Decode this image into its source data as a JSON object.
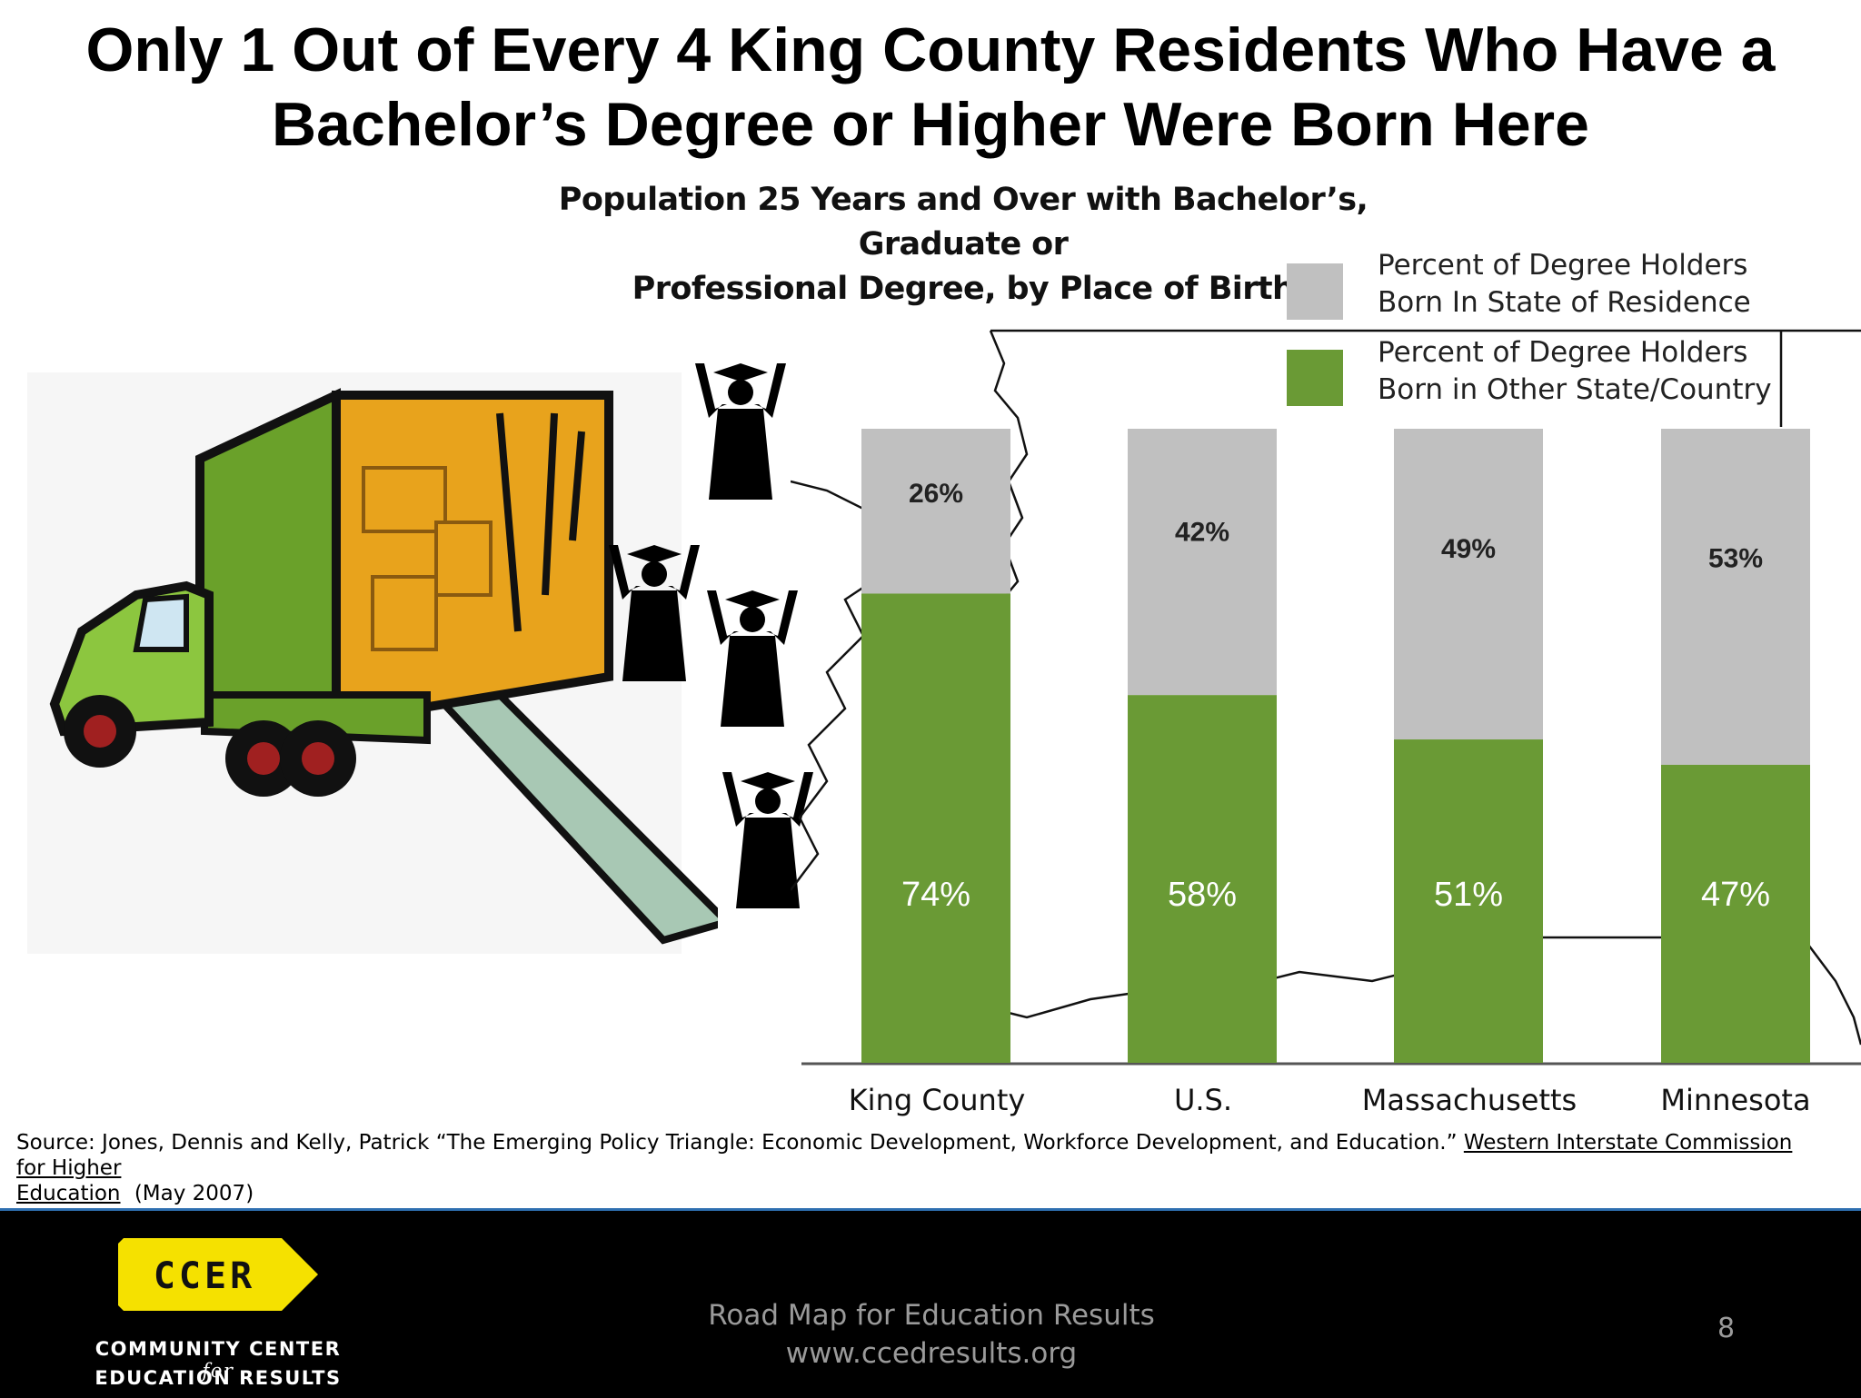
{
  "title_line1": "Only 1 Out of Every 4 King County Residents Who Have a",
  "title_line2": "Bachelor’s Degree or Higher Were Born Here",
  "subtitle_line1": "Population 25 Years and Over with Bachelor’s, Graduate or",
  "subtitle_line2": "Professional Degree, by Place of Birth",
  "legend": [
    {
      "line1": "Percent of Degree Holders",
      "line2": "Born In State of Residence",
      "color": "#c0c0c0"
    },
    {
      "line1": "Percent of Degree Holders",
      "line2": "Born in Other State/Country",
      "color": "#6a9a35"
    }
  ],
  "chart_data": {
    "type": "bar",
    "stacked": true,
    "categories": [
      "King County",
      "U.S.",
      "Massachusetts",
      "Minnesota"
    ],
    "series": [
      {
        "name": "Percent of Degree Holders Born In State of Residence",
        "values": [
          26,
          42,
          49,
          53
        ],
        "labels": [
          "26%",
          "42%",
          "49%",
          "53%"
        ],
        "color": "#c0c0c0"
      },
      {
        "name": "Percent of Degree Holders Born in Other State/Country",
        "values": [
          74,
          58,
          51,
          47
        ],
        "labels": [
          "74%",
          "58%",
          "51%",
          "47%"
        ],
        "color": "#6a9a35"
      }
    ],
    "ylim": [
      0,
      100
    ],
    "grid": false,
    "legend_position": "top-right"
  },
  "source": {
    "prefix": "Source: Jones, Dennis and Kelly, Patrick “The Emerging Policy Triangle: Economic Development, Workforce Development, and Education.”",
    "link_part1": "Western Interstate Commission for Higher",
    "link_part2": "Education",
    "suffix": "(May 2007)"
  },
  "footer": {
    "logo_text": "CCER",
    "org_line1_a": "COMMUNITY CENTER",
    "org_line1_b": "for",
    "org_line2": "EDUCATION RESULTS",
    "center_line1": "Road Map for Education Results",
    "center_line2": "www.ccedresults.org",
    "page_number": "8",
    "logo_color": "#f5e100"
  }
}
